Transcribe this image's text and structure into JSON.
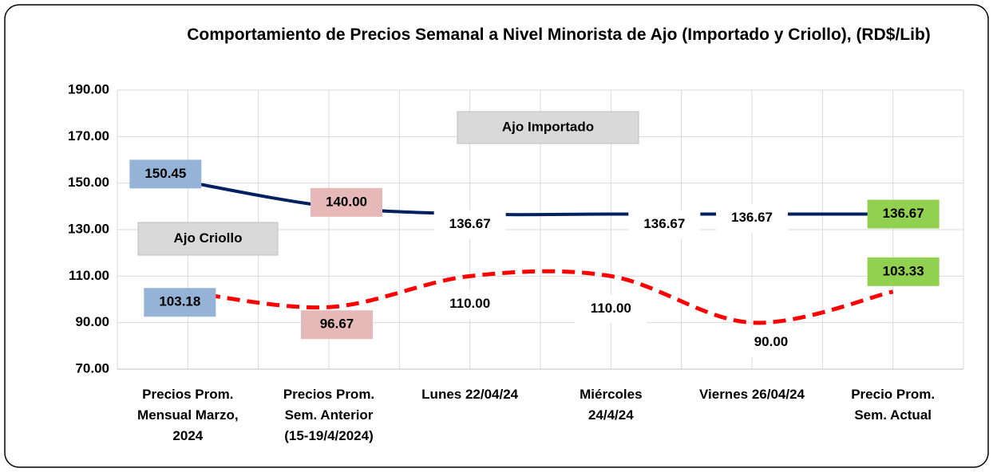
{
  "chart_data": {
    "type": "line",
    "title": "Comportamiento de Precios Semanal a Nivel Minorista de Ajo (Importado y Criollo), (RD$/Lib)",
    "categories": [
      "Precios Prom.\nMensual Marzo,\n2024",
      "Precios Prom.\nSem. Anterior\n(15-19/4/2024)",
      "Lunes  22/04/24",
      "Miércoles\n24/4/24",
      "Viernes 26/04/24",
      "Precio Prom.\nSem. Actual"
    ],
    "series": [
      {
        "name": "Ajo Importado",
        "color": "#002060",
        "dashed": false,
        "values": [
          150.45,
          140,
          136.67,
          136.67,
          136.67,
          136.67
        ],
        "value_labels": [
          "150.45",
          "140.00",
          "136.67",
          "136.67",
          "136.67",
          "136.67"
        ]
      },
      {
        "name": "Ajo Criollo",
        "color": "#FF0000",
        "dashed": true,
        "values": [
          103.18,
          96.67,
          110,
          110,
          90,
          103.33
        ],
        "value_labels": [
          "103.18",
          "96.67",
          "110.00",
          "110.00",
          "90.00",
          "103.33"
        ]
      }
    ],
    "label_colors": [
      "#95B3D7",
      "#E6B8B7",
      "#FFFFFF",
      "#FFFFFF",
      "#FFFFFF",
      "#92D050"
    ],
    "ylim": [
      70,
      190
    ],
    "yticks": [
      {
        "value": 70,
        "label": "70.00"
      },
      {
        "value": 90,
        "label": "90.00"
      },
      {
        "value": 110,
        "label": "110.00"
      },
      {
        "value": 130,
        "label": "130.00"
      },
      {
        "value": 150,
        "label": "150.00"
      },
      {
        "value": 170,
        "label": "170.00"
      },
      {
        "value": 190,
        "label": "190.00"
      }
    ],
    "grid": true
  }
}
